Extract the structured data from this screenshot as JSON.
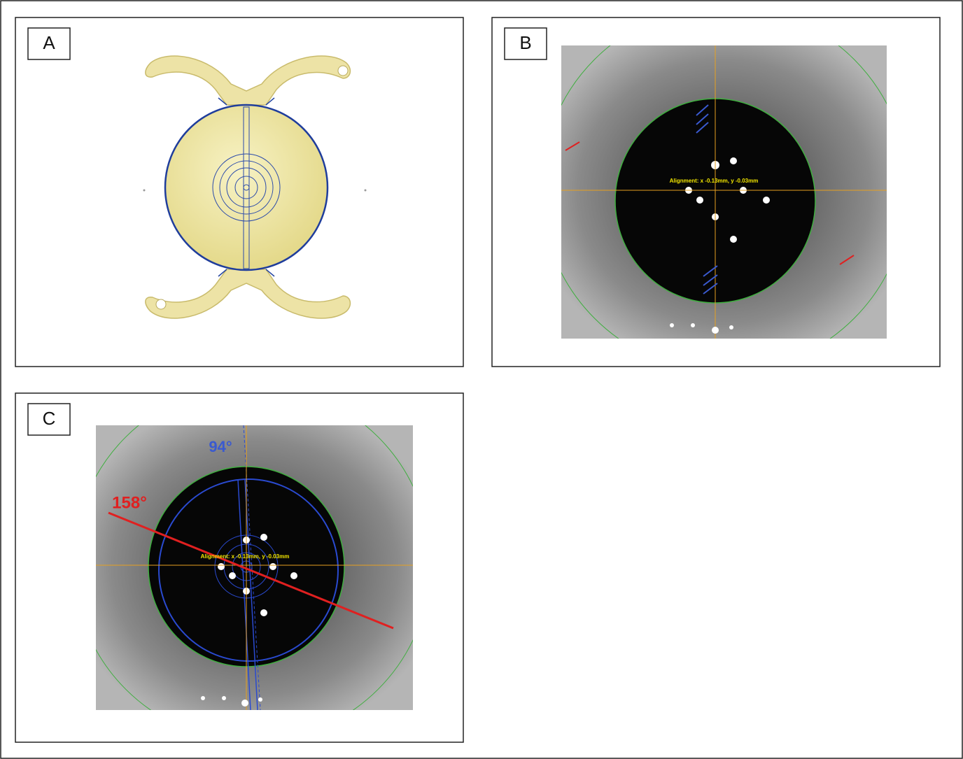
{
  "panels": [
    {
      "label": "A"
    },
    {
      "label": "B",
      "alignment": "Alignment: x -0.13mm, y -0.03mm"
    },
    {
      "label": "C",
      "alignment": "Alignment: x -0.13mm, y -0.03mm",
      "angle_blue": "94°",
      "angle_red": "158°"
    }
  ]
}
